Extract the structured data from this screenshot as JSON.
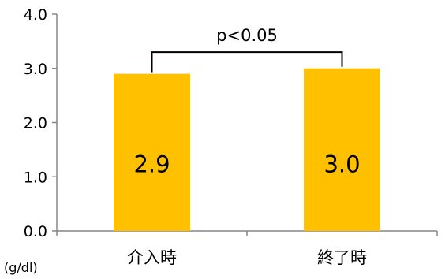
{
  "chart_data": {
    "type": "bar",
    "categories": [
      "介入時",
      "終了時"
    ],
    "values": [
      2.9,
      3.0
    ],
    "data_labels": [
      "2.9",
      "3.0"
    ],
    "yticks": [
      "0.0",
      "1.0",
      "2.0",
      "3.0",
      "4.0"
    ],
    "ylim": [
      0,
      4.0
    ],
    "ylabel": "(g/dl)",
    "bar_color": "#FFC000",
    "grid": false,
    "significance": {
      "label": "p<0.05",
      "between": [
        0,
        1
      ],
      "level": 3.3
    }
  }
}
